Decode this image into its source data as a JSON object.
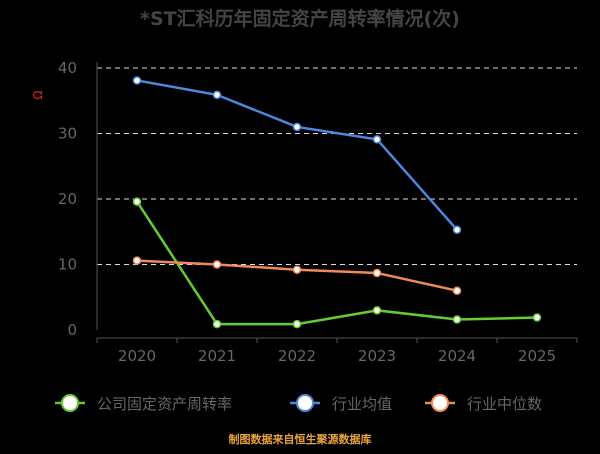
{
  "chart_data": {
    "type": "line",
    "title": "*ST汇科历年固定资产周转率情况(次)",
    "unit_label": "Ω",
    "categories": [
      "2020",
      "2021",
      "2022",
      "2023",
      "2024",
      "2025"
    ],
    "ylim": [
      0,
      40
    ],
    "yticks": [
      0,
      10,
      20,
      30,
      40
    ],
    "grid": true,
    "legend_position": "bottom",
    "series": [
      {
        "name": "公司固定资产周转率",
        "color": "#66CC33",
        "values": [
          19.6,
          0.9,
          0.9,
          3.0,
          1.6,
          1.9
        ]
      },
      {
        "name": "行业均值",
        "color": "#4E86E0",
        "values": [
          38.1,
          35.9,
          31.0,
          29.1,
          15.3,
          null
        ]
      },
      {
        "name": "行业中位数",
        "color": "#F2895A",
        "values": [
          10.6,
          10.0,
          9.2,
          8.7,
          6.0,
          null
        ]
      }
    ],
    "source": "制图数据来自恒生聚源数据库"
  }
}
